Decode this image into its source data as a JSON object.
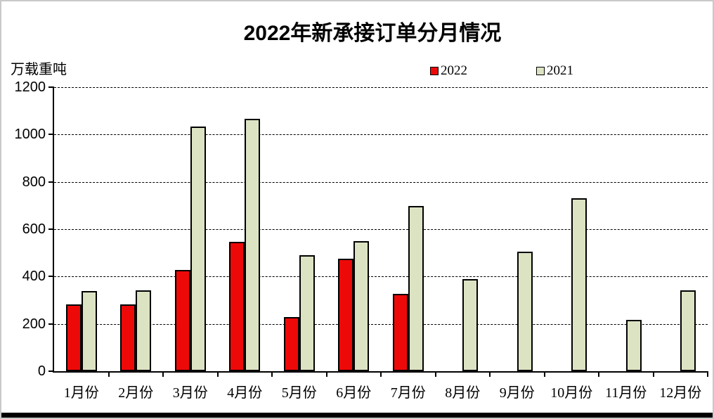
{
  "chart_data": {
    "type": "bar",
    "title": "2022年新承接订单分月情况",
    "unit_label": "万载重吨",
    "categories": [
      "1月份",
      "2月份",
      "3月份",
      "4月份",
      "5月份",
      "6月份",
      "7月份",
      "8月份",
      "9月份",
      "10月份",
      "11月份",
      "12月份"
    ],
    "series": [
      {
        "name": "2022",
        "color": "#ee0909",
        "values": [
          283,
          283,
          429,
          548,
          229,
          474,
          328,
          null,
          null,
          null,
          null,
          null
        ]
      },
      {
        "name": "2021",
        "color": "#dce3c3",
        "values": [
          339,
          343,
          1035,
          1067,
          489,
          550,
          699,
          390,
          504,
          731,
          217,
          343
        ]
      }
    ],
    "ylim": [
      0,
      1200
    ],
    "yticks": [
      0,
      200,
      400,
      600,
      800,
      1000,
      1200
    ],
    "grid": "horizontal-dashed",
    "legend_position": "top-center",
    "bar_border_color": "#000000",
    "axis_color": "#000000"
  }
}
